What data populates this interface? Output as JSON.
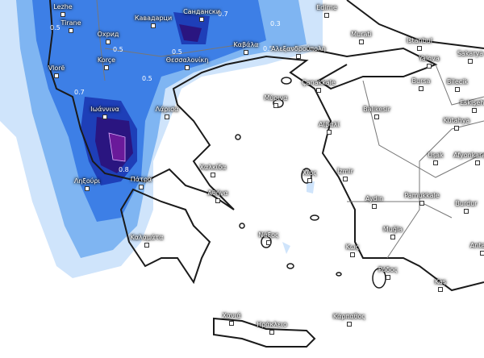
{
  "map": {
    "type": "precipitation-contour-map",
    "colors": {
      "light": "#cfe4fb",
      "mid": "#7fb5f2",
      "blue": "#3d7fe6",
      "dark": "#1e3fb8",
      "deep": "#2a1580",
      "peak": "#6a1a9a",
      "land": "#ffffff",
      "border": "#1a1a1a"
    },
    "contour_labels": [
      "0.5",
      "0.5",
      "0.5",
      "0.5",
      "0.7",
      "0.7",
      "0.8",
      "0.3",
      "0.5"
    ],
    "cities": [
      "Lezhe",
      "Tirane",
      "Охрид",
      "Кавадарци",
      "Сандански",
      "Korçe",
      "Vlorë",
      "Θεσσαλονίκη",
      "Καβάλα",
      "Αλεξανδρούπολη",
      "Edirne",
      "Murati",
      "İstanbul",
      "Yalova",
      "Sakarya",
      "Bursa",
      "Bilecik",
      "Eskişehir",
      "Çanakkale",
      "Μύρινα",
      "Balıkesir",
      "Kütahya",
      "Αϊβαλί",
      "Ιωάννινα",
      "Λάρισα",
      "Χαλκίδα",
      "Ληξούρι",
      "Πάτρα",
      "Αθήνα",
      "Χίος",
      "İzmir",
      "Uşak",
      "Afyonkarahisar",
      "Aydın",
      "Pamukkale",
      "Burdur",
      "Muğla",
      "Νάξος",
      "Κως",
      "Ρόδος",
      "Kaş",
      "Antalya",
      "Καλαμάτα",
      "Χανιά",
      "Ηράκλειο",
      "Κάρπαθος"
    ]
  }
}
